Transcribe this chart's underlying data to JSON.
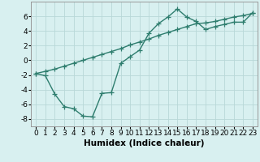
{
  "line1_x": [
    0,
    1,
    2,
    3,
    4,
    5,
    6,
    7,
    8,
    9,
    10,
    11,
    12,
    13,
    14,
    15,
    16,
    17,
    18,
    19,
    20,
    21,
    22,
    23
  ],
  "line1_y": [
    -1.8,
    -1.5,
    -1.2,
    -0.8,
    -0.4,
    0.0,
    0.4,
    0.8,
    1.2,
    1.6,
    2.1,
    2.5,
    2.9,
    3.4,
    3.8,
    4.2,
    4.6,
    5.0,
    5.1,
    5.3,
    5.6,
    5.9,
    6.1,
    6.4
  ],
  "line2_x": [
    0,
    1,
    2,
    3,
    4,
    5,
    6,
    7,
    8,
    9,
    10,
    11,
    12,
    13,
    14,
    15,
    16,
    17,
    18,
    19,
    20,
    21,
    22,
    23
  ],
  "line2_y": [
    -1.8,
    -2.1,
    -4.6,
    -6.3,
    -6.6,
    -7.6,
    -7.7,
    -4.5,
    -4.4,
    -0.4,
    0.5,
    1.4,
    3.7,
    5.0,
    5.9,
    7.0,
    5.9,
    5.3,
    4.2,
    4.6,
    4.9,
    5.2,
    5.2,
    6.5
  ],
  "line_color": "#2e7d6e",
  "bg_color": "#d8f0f0",
  "grid_color": "#b8d8d8",
  "xlabel": "Humidex (Indice chaleur)",
  "xlim": [
    -0.5,
    23.5
  ],
  "ylim": [
    -9,
    8
  ],
  "yticks": [
    -8,
    -6,
    -4,
    -2,
    0,
    2,
    4,
    6
  ],
  "xticks": [
    0,
    1,
    2,
    3,
    4,
    5,
    6,
    7,
    8,
    9,
    10,
    11,
    12,
    13,
    14,
    15,
    16,
    17,
    18,
    19,
    20,
    21,
    22,
    23
  ],
  "marker": "+",
  "linewidth": 1.0,
  "markersize": 4,
  "font_size": 6.5,
  "xlabel_fontsize": 7.5
}
